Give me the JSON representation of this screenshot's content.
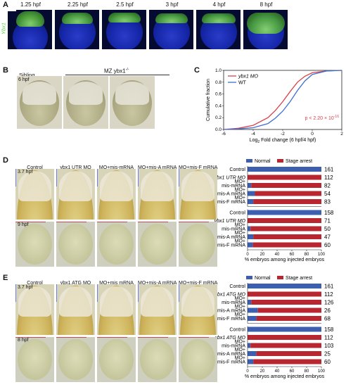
{
  "panels": {
    "A": "A",
    "B": "B",
    "C": "C",
    "D": "D",
    "E": "E"
  },
  "panelA": {
    "side_label": "Ybx1",
    "stages": [
      "1.25 hpf",
      "2.25 hpf",
      "2.5 hpf",
      "3 hpf",
      "4 hpf",
      "8 hpf"
    ]
  },
  "panelB": {
    "sibling": "Sibling",
    "mz": "MZ ybx1",
    "mz_sup": "-/-",
    "stage": "6 hpf"
  },
  "panelC": {
    "legend": [
      {
        "name": "ybx1 MO",
        "color": "#d9414a"
      },
      {
        "name": "WT",
        "color": "#3d6fd1"
      }
    ],
    "pvalue": "p < 2.20 × 10",
    "pvalue_exp": "-16",
    "ylabel": "Cumulative fraction",
    "xlabel": "Log",
    "xlabel_sub": "2",
    "xlabel_rest": " Fold change (6 hpf/4 hpf)",
    "xticks": [
      "-6",
      "-4",
      "-2",
      "0",
      "2"
    ],
    "yticks": [
      "0.0",
      "0.2",
      "0.4",
      "0.6",
      "0.8",
      "1.0"
    ]
  },
  "panelD": {
    "cols": [
      "Control",
      "ybx1 UTR MO",
      "MO+mis-mRNA",
      "MO+mis-A mRNA",
      "MO+mis-F mRNA"
    ],
    "rows": [
      "3.7 hpf",
      "9 hpf"
    ]
  },
  "panelE": {
    "cols": [
      "Control",
      "ybx1 ATG MO",
      "MO+mis mRNA",
      "MO+mis-A mRNA",
      "MO+mis-F mRNA"
    ],
    "rows": [
      "3.7 hpf",
      "8 hpf"
    ]
  },
  "bars_legend": {
    "normal": "Normal",
    "arrest": "Stage arrest",
    "normal_color": "#3d5fb0",
    "arrest_color": "#b8262f"
  },
  "bars_xlabel": "% embryos among injected embryos",
  "bars_xticks": [
    "0",
    "20",
    "40",
    "60",
    "80",
    "100"
  ],
  "chart_data": [
    {
      "type": "bar",
      "title": "D 3.7 hpf",
      "categories": [
        "Control",
        "ybx1 UTR MO",
        "MO+ mis-mRNA",
        "MO+ mis-A mRNA",
        "MO+ mis-F mRNA"
      ],
      "series": [
        {
          "name": "Normal",
          "values": [
            100,
            0,
            5,
            10,
            8
          ]
        },
        {
          "name": "Stage arrest",
          "values": [
            0,
            100,
            95,
            90,
            92
          ]
        }
      ],
      "counts": [
        "161",
        "112",
        "82",
        "54",
        "83"
      ]
    },
    {
      "type": "bar",
      "title": "D 9 hpf",
      "categories": [
        "Control",
        "ybx1 UTR MO",
        "MO+ mis-mRNA",
        "MO+ mis-A mRNA",
        "MO+ mis-F mRNA"
      ],
      "series": [
        {
          "name": "Normal",
          "values": [
            100,
            0,
            4,
            8,
            7
          ]
        },
        {
          "name": "Stage arrest",
          "values": [
            0,
            100,
            96,
            92,
            93
          ]
        }
      ],
      "counts": [
        "158",
        "71",
        "50",
        "47",
        "60"
      ]
    },
    {
      "type": "bar",
      "title": "E 3.7 hpf",
      "categories": [
        "Control",
        "ybx1 ATG MO",
        "MO+ mis-mRNA",
        "MO+ mis-A mRNA",
        "MO+ mis-F mRNA"
      ],
      "series": [
        {
          "name": "Normal",
          "values": [
            100,
            0,
            5,
            14,
            12
          ]
        },
        {
          "name": "Stage arrest",
          "values": [
            0,
            100,
            95,
            86,
            88
          ]
        }
      ],
      "counts": [
        "161",
        "112",
        "126",
        "26",
        "68"
      ]
    },
    {
      "type": "bar",
      "title": "E 8 hpf",
      "categories": [
        "Control",
        "ybx1 ATG MO",
        "MO+ mis-mRNA",
        "MO+ mis-A mRNA",
        "MO+ mis-F mRNA"
      ],
      "series": [
        {
          "name": "Normal",
          "values": [
            100,
            0,
            4,
            12,
            8
          ]
        },
        {
          "name": "Stage arrest",
          "values": [
            0,
            100,
            96,
            88,
            92
          ]
        }
      ],
      "counts": [
        "158",
        "112",
        "103",
        "25",
        "60"
      ]
    },
    {
      "type": "line",
      "title": "C",
      "xlabel": "Log2 Fold change (6 hpf/4 hpf)",
      "ylabel": "Cumulative fraction",
      "xlim": [
        -6,
        2
      ],
      "ylim": [
        0,
        1
      ],
      "series": [
        {
          "name": "ybx1 MO",
          "x": [
            -6,
            -5,
            -4,
            -3,
            -2.5,
            -2,
            -1.5,
            -1,
            -0.5,
            0,
            1,
            2
          ],
          "y": [
            0,
            0.02,
            0.07,
            0.2,
            0.32,
            0.47,
            0.64,
            0.8,
            0.9,
            0.96,
            0.99,
            1
          ]
        },
        {
          "name": "WT",
          "x": [
            -6,
            -5,
            -4,
            -3,
            -2.5,
            -2,
            -1.5,
            -1,
            -0.5,
            0,
            1,
            2
          ],
          "y": [
            0,
            0.01,
            0.03,
            0.1,
            0.19,
            0.31,
            0.47,
            0.66,
            0.82,
            0.93,
            0.99,
            1
          ]
        }
      ]
    }
  ]
}
